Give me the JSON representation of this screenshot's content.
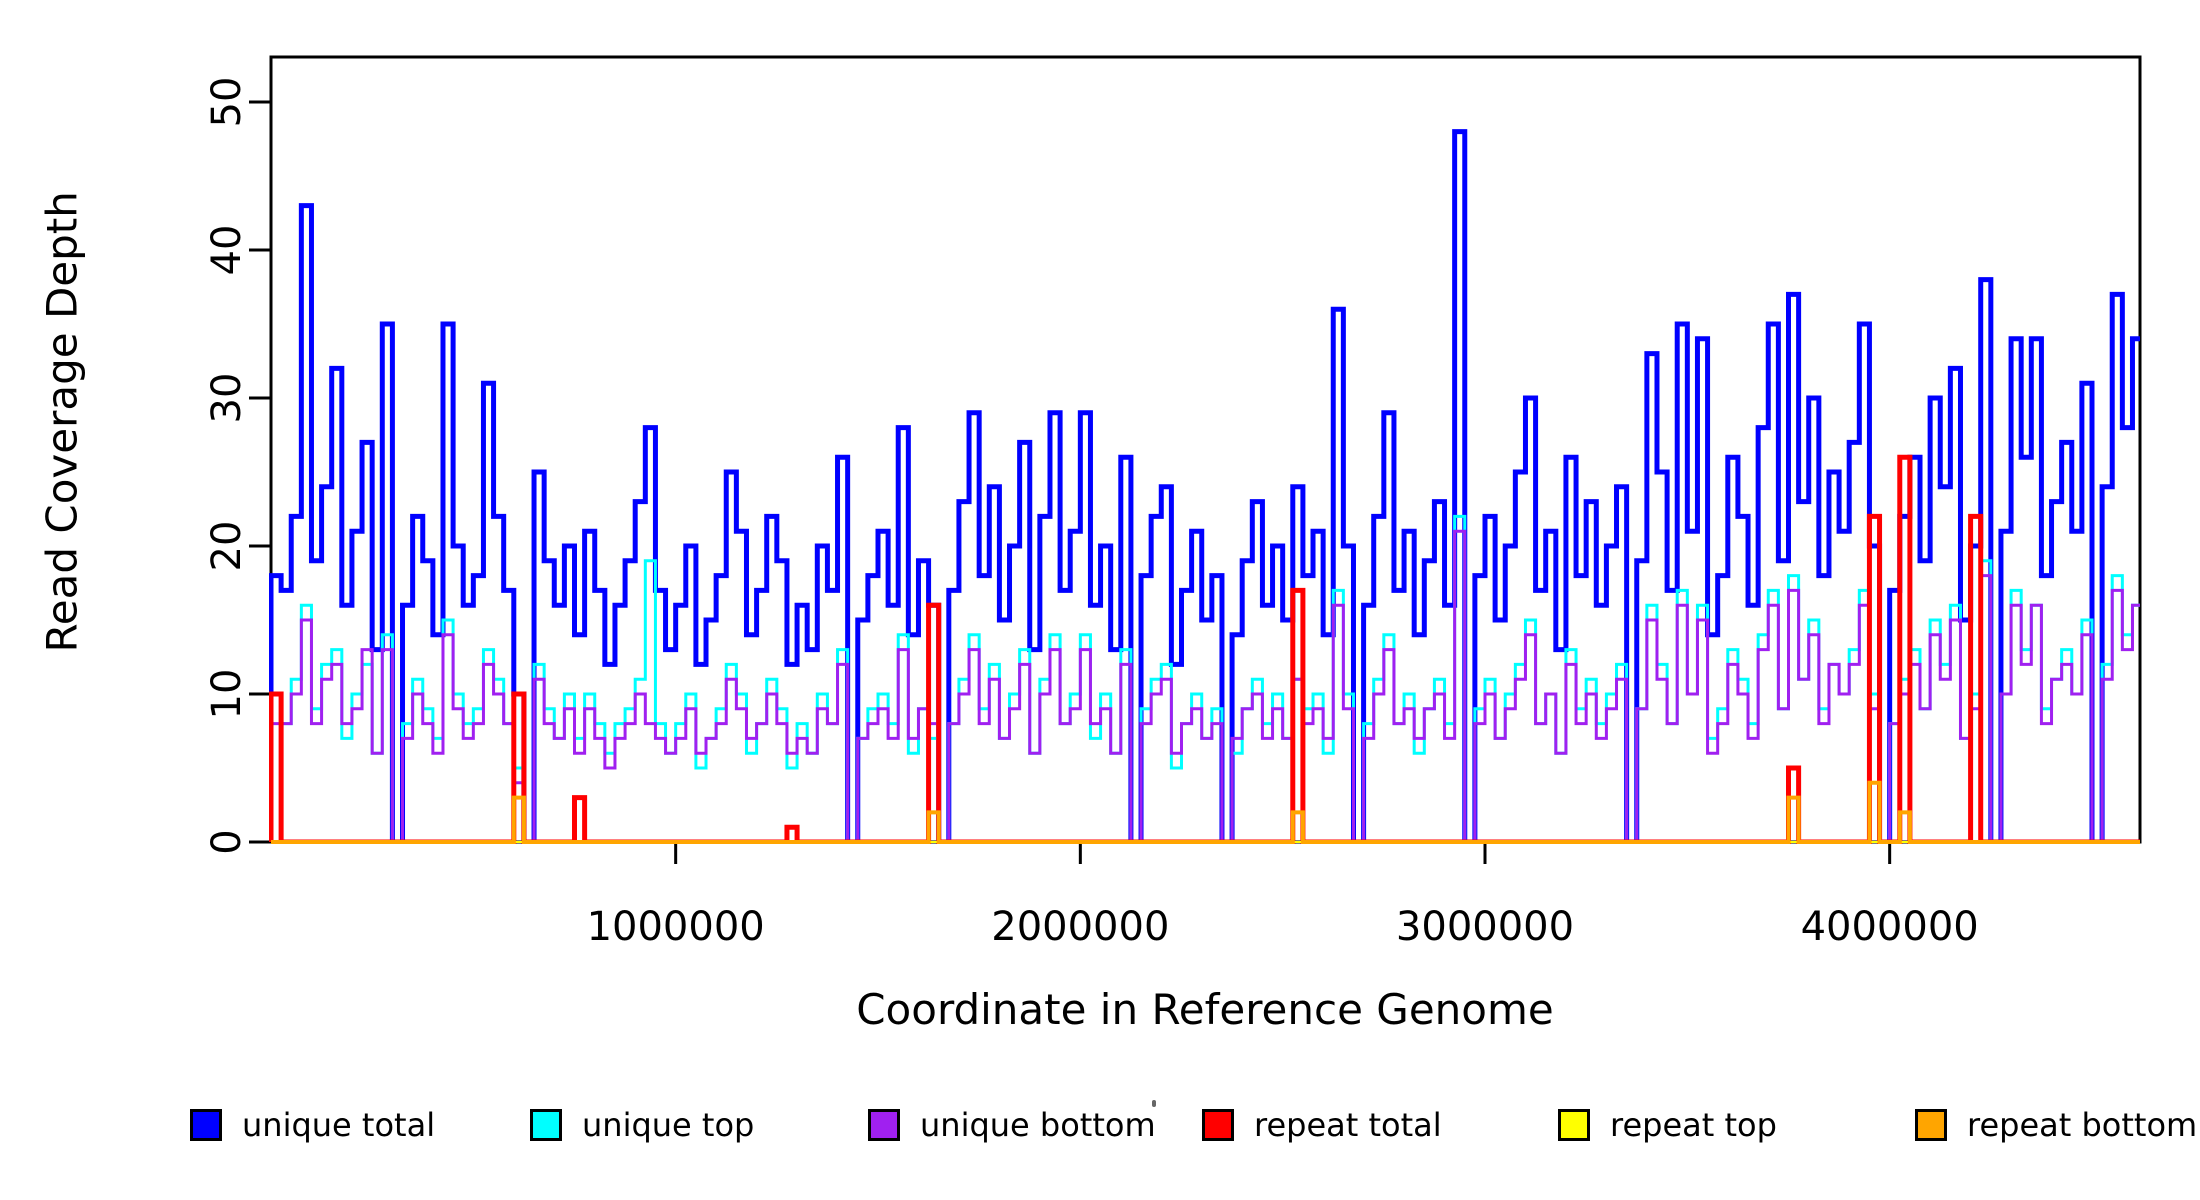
{
  "chart_data": {
    "type": "line",
    "subtype": "step-after",
    "title": "",
    "xlabel": "Coordinate in Reference Genome",
    "ylabel": "Read Coverage Depth",
    "xlim": [
      0,
      4625000
    ],
    "ylim": [
      0,
      53
    ],
    "grid": false,
    "legend_position": "bottom",
    "x_ticks": [
      1000000,
      2000000,
      3000000,
      4000000
    ],
    "x_tick_labels": [
      "1000000",
      "2000000",
      "3000000",
      "4000000"
    ],
    "y_ticks": [
      0,
      10,
      20,
      30,
      40,
      50
    ],
    "y_tick_labels": [
      "0",
      "10",
      "20",
      "30",
      "40",
      "50"
    ],
    "bin_width": 25000,
    "series": [
      {
        "name": "unique total",
        "color": "#0000FF",
        "line_width": 5,
        "values": [
          18,
          17,
          22,
          43,
          19,
          24,
          32,
          16,
          21,
          27,
          13,
          35,
          0,
          16,
          22,
          19,
          14,
          35,
          20,
          16,
          18,
          31,
          22,
          17,
          10,
          0,
          25,
          19,
          16,
          20,
          14,
          21,
          17,
          12,
          16,
          19,
          23,
          28,
          17,
          13,
          16,
          20,
          12,
          15,
          18,
          25,
          21,
          14,
          17,
          22,
          19,
          12,
          16,
          13,
          20,
          17,
          26,
          0,
          15,
          18,
          21,
          16,
          28,
          14,
          19,
          16,
          0,
          17,
          23,
          29,
          18,
          24,
          15,
          20,
          27,
          13,
          22,
          29,
          17,
          21,
          29,
          16,
          20,
          13,
          26,
          0,
          18,
          22,
          24,
          12,
          17,
          21,
          15,
          18,
          0,
          14,
          19,
          23,
          16,
          20,
          15,
          24,
          18,
          21,
          14,
          36,
          20,
          0,
          16,
          22,
          29,
          17,
          21,
          14,
          19,
          23,
          16,
          48,
          0,
          18,
          22,
          15,
          20,
          25,
          30,
          17,
          21,
          13,
          26,
          18,
          23,
          16,
          20,
          24,
          0,
          19,
          33,
          25,
          17,
          35,
          21,
          34,
          14,
          18,
          26,
          22,
          16,
          28,
          35,
          19,
          37,
          23,
          30,
          18,
          25,
          21,
          27,
          35,
          20,
          0,
          17,
          22,
          26,
          19,
          30,
          24,
          32,
          15,
          20,
          38,
          0,
          21,
          34,
          26,
          34,
          18,
          23,
          27,
          21,
          31,
          0,
          24,
          37,
          28,
          34
        ]
      },
      {
        "name": "unique top",
        "color": "#00FFFF",
        "line_width": 3,
        "values": [
          10,
          8,
          11,
          16,
          9,
          12,
          13,
          7,
          10,
          12,
          6,
          14,
          0,
          8,
          11,
          9,
          7,
          15,
          10,
          8,
          9,
          13,
          11,
          8,
          5,
          0,
          12,
          9,
          7,
          10,
          7,
          10,
          8,
          6,
          8,
          9,
          11,
          19,
          8,
          6,
          8,
          10,
          5,
          7,
          9,
          12,
          10,
          6,
          8,
          11,
          9,
          5,
          8,
          6,
          10,
          8,
          13,
          0,
          7,
          9,
          10,
          8,
          14,
          6,
          9,
          7,
          0,
          8,
          11,
          14,
          9,
          12,
          7,
          10,
          13,
          6,
          11,
          14,
          8,
          10,
          14,
          7,
          10,
          6,
          13,
          0,
          9,
          11,
          12,
          5,
          8,
          10,
          7,
          9,
          0,
          6,
          9,
          11,
          8,
          10,
          7,
          11,
          9,
          10,
          6,
          17,
          10,
          0,
          8,
          11,
          14,
          8,
          10,
          6,
          9,
          11,
          8,
          22,
          0,
          9,
          11,
          7,
          10,
          12,
          15,
          8,
          10,
          6,
          13,
          9,
          11,
          8,
          10,
          12,
          0,
          9,
          16,
          12,
          8,
          17,
          10,
          16,
          7,
          9,
          13,
          11,
          8,
          14,
          17,
          9,
          18,
          11,
          15,
          9,
          12,
          10,
          13,
          17,
          10,
          0,
          8,
          11,
          13,
          9,
          15,
          12,
          16,
          7,
          10,
          19,
          0,
          10,
          17,
          13,
          16,
          9,
          11,
          13,
          10,
          15,
          0,
          12,
          18,
          14,
          16
        ]
      },
      {
        "name": "unique bottom",
        "color": "#A020F0",
        "line_width": 3,
        "values": [
          8,
          8,
          10,
          15,
          8,
          11,
          12,
          8,
          9,
          13,
          6,
          13,
          0,
          7,
          10,
          8,
          6,
          14,
          9,
          7,
          8,
          12,
          10,
          8,
          4,
          0,
          11,
          8,
          7,
          9,
          6,
          9,
          7,
          5,
          7,
          8,
          10,
          8,
          7,
          6,
          7,
          9,
          6,
          7,
          8,
          11,
          9,
          7,
          8,
          10,
          8,
          6,
          7,
          6,
          9,
          8,
          12,
          0,
          7,
          8,
          9,
          7,
          13,
          7,
          9,
          8,
          0,
          8,
          10,
          13,
          8,
          11,
          7,
          9,
          12,
          6,
          10,
          13,
          8,
          9,
          13,
          8,
          9,
          6,
          12,
          0,
          8,
          10,
          11,
          6,
          8,
          9,
          7,
          8,
          0,
          7,
          9,
          10,
          7,
          9,
          7,
          11,
          8,
          9,
          7,
          16,
          9,
          0,
          7,
          10,
          13,
          8,
          9,
          7,
          9,
          10,
          7,
          21,
          0,
          8,
          10,
          7,
          9,
          11,
          14,
          8,
          10,
          6,
          12,
          8,
          10,
          7,
          9,
          11,
          0,
          9,
          15,
          11,
          8,
          16,
          10,
          15,
          6,
          8,
          12,
          10,
          7,
          13,
          16,
          9,
          17,
          11,
          14,
          8,
          12,
          10,
          12,
          16,
          9,
          0,
          8,
          10,
          12,
          9,
          14,
          11,
          15,
          7,
          9,
          18,
          0,
          10,
          16,
          12,
          16,
          8,
          11,
          12,
          10,
          14,
          0,
          11,
          17,
          13,
          16
        ]
      },
      {
        "name": "repeat total",
        "color": "#FF0000",
        "line_width": 5,
        "spikes": [
          [
            0,
            10
          ],
          [
            600000,
            10
          ],
          [
            750000,
            3
          ],
          [
            1275000,
            1
          ],
          [
            1625000,
            16
          ],
          [
            2525000,
            17
          ],
          [
            3760000,
            5
          ],
          [
            3950000,
            22
          ],
          [
            4030000,
            26
          ],
          [
            4200000,
            22
          ]
        ]
      },
      {
        "name": "repeat top",
        "color": "#FFFF00",
        "line_width": 2,
        "spikes": []
      },
      {
        "name": "repeat bottom",
        "color": "#FFA500",
        "line_width": 4,
        "spikes": [
          [
            600000,
            3
          ],
          [
            1625000,
            2
          ],
          [
            2525000,
            2
          ],
          [
            3760000,
            3
          ],
          [
            3950000,
            4
          ],
          [
            4030000,
            2
          ]
        ]
      }
    ]
  },
  "legend": {
    "items": [
      {
        "label": "unique total",
        "color": "#0000FF"
      },
      {
        "label": "unique top",
        "color": "#00FFFF"
      },
      {
        "label": "unique bottom",
        "color": "#A020F0"
      },
      {
        "label": "repeat total",
        "color": "#FF0000"
      },
      {
        "label": "repeat top",
        "color": "#FFFF00"
      },
      {
        "label": "repeat bottom",
        "color": "#FFA500"
      }
    ]
  },
  "axis_colors": {
    "box": "#000000",
    "ticks": "#000000"
  }
}
